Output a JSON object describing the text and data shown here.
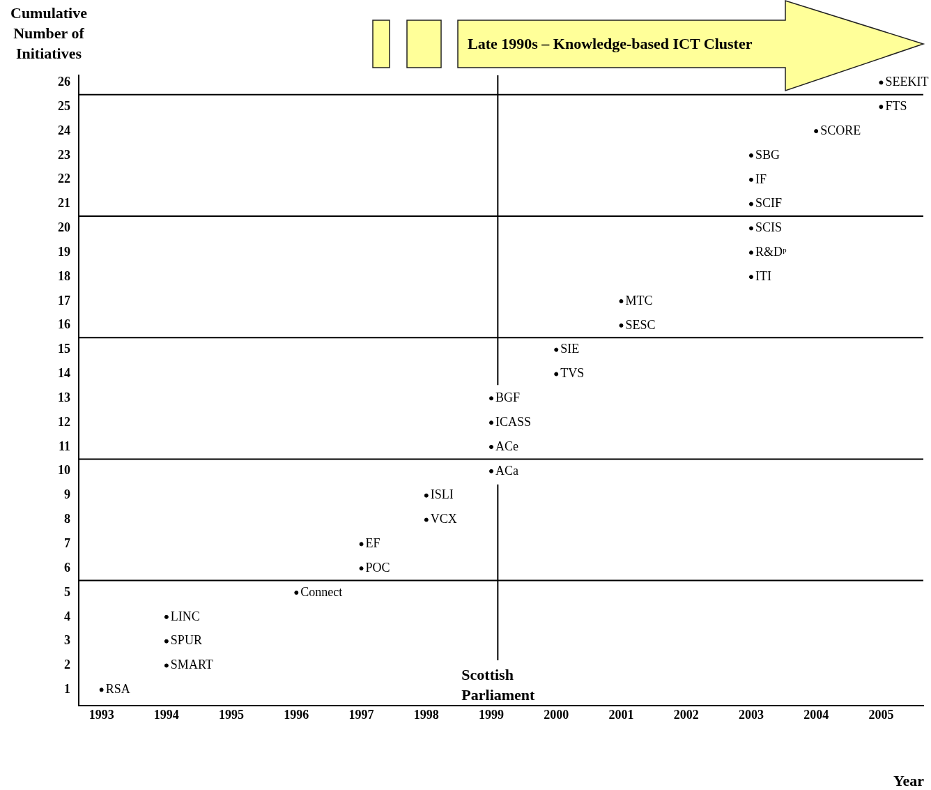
{
  "chart_data": {
    "type": "scatter",
    "xlabel": "Year",
    "ylabel": "Cumulative Number of Initiatives",
    "x": [
      1993,
      1994,
      1994,
      1994,
      1996,
      1997,
      1997,
      1998,
      1998,
      1999,
      1999,
      1999,
      1999,
      2000,
      2000,
      2001,
      2001,
      2003,
      2003,
      2003,
      2003,
      2003,
      2003,
      2004,
      2005,
      2005
    ],
    "values": [
      1,
      2,
      3,
      4,
      5,
      6,
      7,
      8,
      9,
      10,
      11,
      12,
      13,
      14,
      15,
      16,
      17,
      18,
      19,
      20,
      21,
      22,
      23,
      24,
      25,
      26
    ],
    "value_labels": [
      "RSA",
      "SMART",
      "SPUR",
      "LINC",
      "Connect",
      "POC",
      "EF",
      "VCX",
      "ISLI",
      "ACa",
      "ACe",
      "ICASS",
      "BGF",
      "TVS",
      "SIE",
      "SESC",
      "MTC",
      "ITI",
      "R&Dᵖ",
      "SCIS",
      "SCIF",
      "IF",
      "SBG",
      "SCORE",
      "FTS",
      "SEEKIT"
    ],
    "marker": "circle",
    "color": "#000000",
    "grid": false,
    "xlim": [
      1992.65,
      2005.65
    ],
    "xticks": [
      1993,
      1994,
      1995,
      1996,
      1997,
      1998,
      1999,
      2000,
      2001,
      2002,
      2003,
      2004,
      2005
    ],
    "ylim": [
      0.35,
      26.3
    ],
    "yticks": [
      1,
      2,
      3,
      4,
      5,
      6,
      7,
      8,
      9,
      10,
      11,
      12,
      13,
      14,
      15,
      16,
      17,
      18,
      19,
      20,
      21,
      22,
      23,
      24,
      25,
      26
    ],
    "ref_lines": [
      {
        "axis": "x",
        "value": 1999.1,
        "label": "Scottish Parliament",
        "color": "#000000"
      },
      {
        "axis": "y",
        "value": 5.5,
        "color": "#000000"
      },
      {
        "axis": "y",
        "value": 10.5,
        "color": "#000000"
      },
      {
        "axis": "y",
        "value": 15.5,
        "color": "#000000"
      },
      {
        "axis": "y",
        "value": 20.5,
        "color": "#000000"
      },
      {
        "axis": "y",
        "value": 25.5,
        "color": "#000000"
      }
    ],
    "annotations": [
      "Late 1990s – Knowledge-based ICT Cluster"
    ]
  }
}
